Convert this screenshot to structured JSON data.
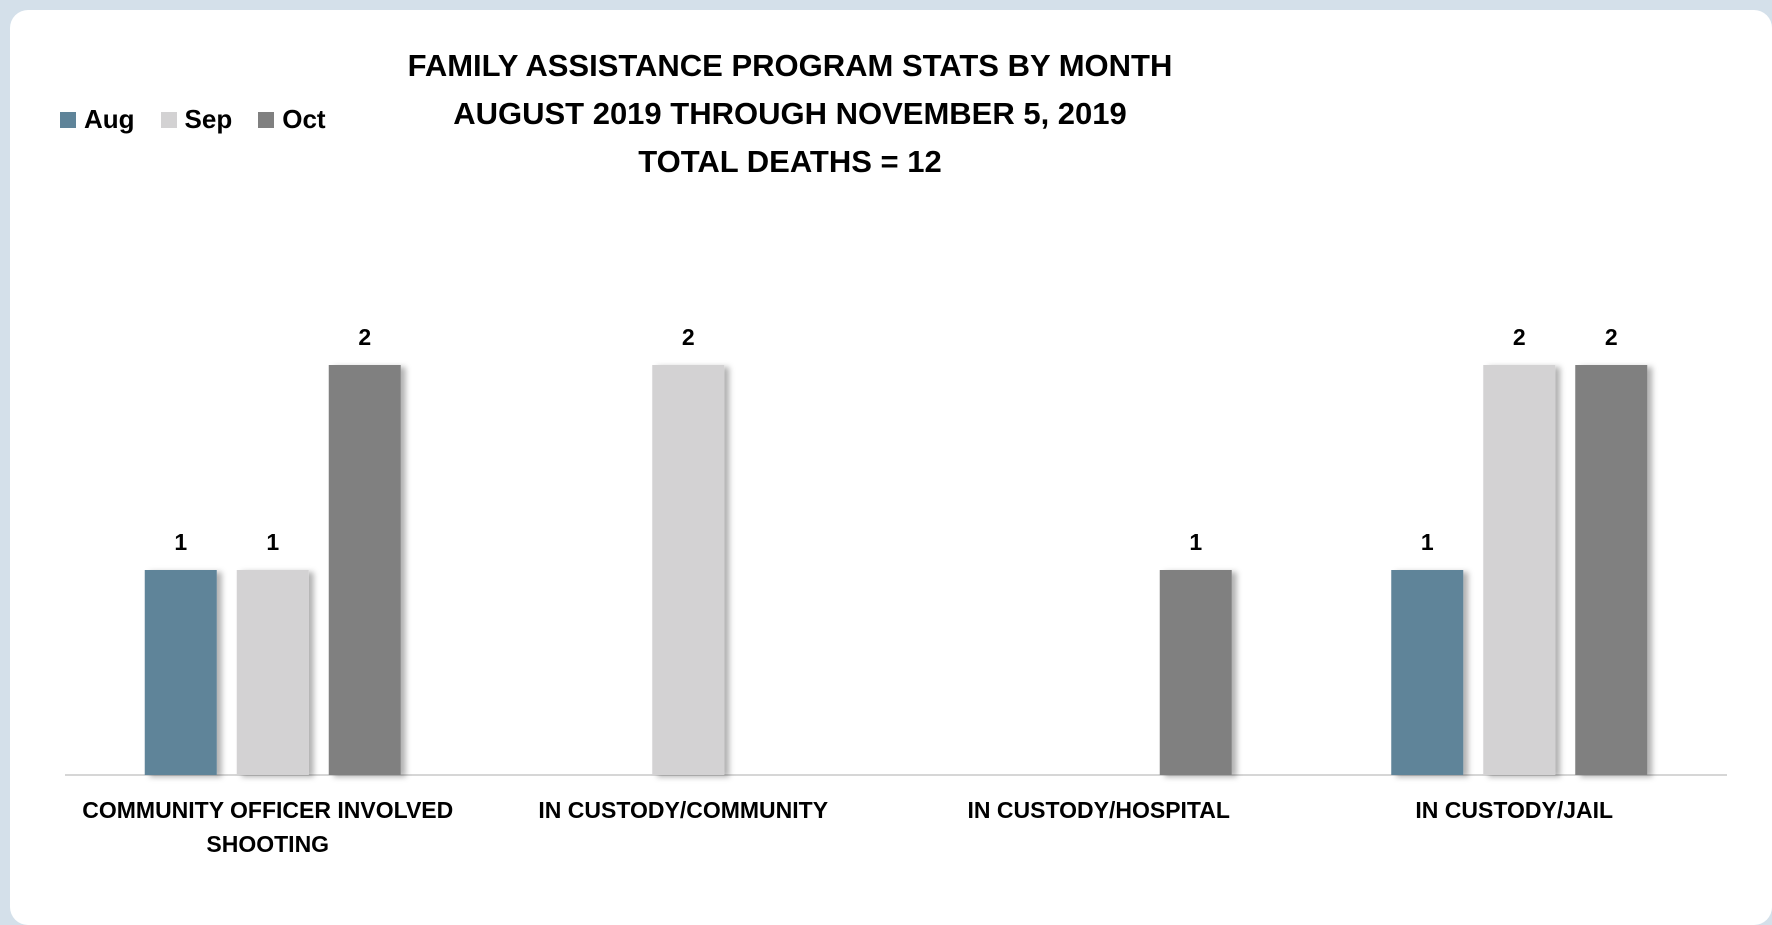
{
  "chart_data": {
    "type": "bar",
    "title": [
      "FAMILY ASSISTANCE PROGRAM STATS BY MONTH",
      "AUGUST 2019 THROUGH NOVEMBER 5, 2019",
      "TOTAL DEATHS = 12"
    ],
    "categories": [
      [
        "COMMUNITY OFFICER INVOLVED",
        "SHOOTING"
      ],
      [
        "IN CUSTODY/COMMUNITY"
      ],
      [
        "IN CUSTODY/HOSPITAL"
      ],
      [
        "IN CUSTODY/JAIL"
      ]
    ],
    "series": [
      {
        "name": "Aug",
        "color": "#5f8499",
        "values": [
          1,
          null,
          null,
          1
        ]
      },
      {
        "name": "Sep",
        "color": "#d3d2d3",
        "values": [
          1,
          2,
          null,
          2
        ]
      },
      {
        "name": "Oct",
        "color": "#808080",
        "values": [
          2,
          null,
          1,
          2
        ]
      }
    ],
    "ylim": [
      0,
      2
    ],
    "grid": false,
    "legend_position": "top-left",
    "data_labels": true
  }
}
